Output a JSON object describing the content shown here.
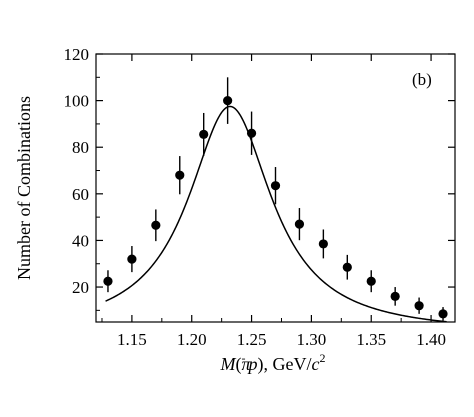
{
  "chart_data": {
    "type": "scatter",
    "panel_label": "(b)",
    "xlabel": {
      "prefix": "M",
      "paren_open": "(",
      "pion": "π",
      "pion_charge": "-",
      "proton": "p",
      "paren_close": ")",
      "units": ", GeV/",
      "c": "c",
      "c_power": "2"
    },
    "ylabel": "Number of Combinations",
    "xlim": [
      1.12,
      1.42
    ],
    "ylim": [
      5,
      120
    ],
    "xticks": [
      1.15,
      1.2,
      1.25,
      1.3,
      1.35,
      1.4
    ],
    "xtick_labels": [
      "1.15",
      "1.20",
      "1.25",
      "1.30",
      "1.35",
      "1.40"
    ],
    "yticks": [
      20,
      40,
      60,
      80,
      100,
      120
    ],
    "ytick_labels": [
      "20",
      "40",
      "60",
      "80",
      "100",
      "120"
    ],
    "series": [
      {
        "type": "scatter_errorbar",
        "x": [
          1.13,
          1.15,
          1.17,
          1.19,
          1.21,
          1.23,
          1.25,
          1.27,
          1.29,
          1.31,
          1.33,
          1.35,
          1.37,
          1.39,
          1.41
        ],
        "y": [
          22.5,
          32,
          46.5,
          68,
          85.5,
          100,
          86,
          63.5,
          47,
          38.5,
          28.5,
          22.5,
          16,
          12,
          8.5
        ],
        "err": [
          4.7,
          5.6,
          6.8,
          8.2,
          9.2,
          10,
          9.3,
          8,
          6.9,
          6.2,
          5.3,
          4.7,
          4,
          3.5,
          2.9
        ]
      },
      {
        "type": "fit_curve",
        "peak": 1.232,
        "width": 0.085,
        "amplitude": 97.5,
        "background_left": 0,
        "background_slope": 0
      }
    ]
  }
}
